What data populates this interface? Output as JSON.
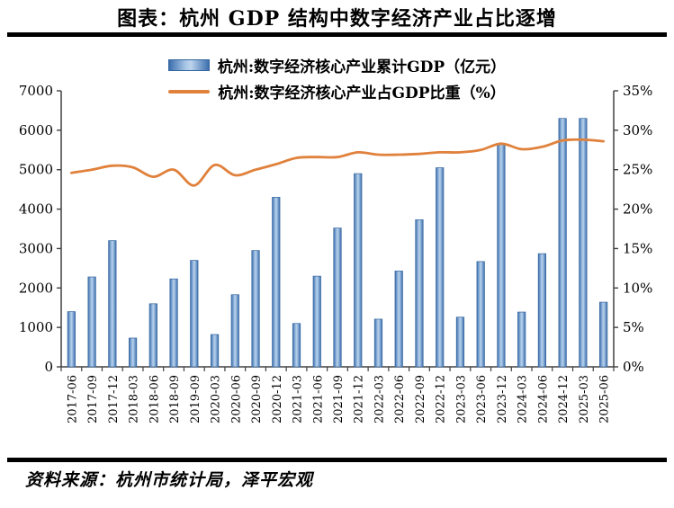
{
  "title": "图表：杭州 GDP 结构中数字经济产业占比逐增",
  "source": "资料来源：杭州市统计局，泽平宏观",
  "legend": [
    {
      "label": "杭州:数字经济核心产业累计GDP（亿元）",
      "swatch": "bar-swatch"
    },
    {
      "label": "杭州:数字经济核心产业占GDP比重（%）",
      "swatch": "line-swatch"
    }
  ],
  "colors": {
    "bar_edge": "#3c6fae",
    "bar_center": "#b0cce9",
    "bar_border": "#35669e",
    "line": "#e0813c",
    "axis": "#404040",
    "text": "#000000",
    "rule": "#000000"
  },
  "chart_data": {
    "type": "bar",
    "subtype": "bar-line combo, dual axis",
    "title": "图表：杭州 GDP 结构中数字经济产业占比逐增",
    "grid": false,
    "legend_position": "top-center",
    "categories": [
      "2017-06",
      "2017-09",
      "2017-12",
      "2018-03",
      "2018-06",
      "2018-09",
      "2019-09",
      "2020-03",
      "2020-06",
      "2020-09",
      "2020-12",
      "2021-03",
      "2021-06",
      "2021-09",
      "2021-12",
      "2022-03",
      "2022-06",
      "2022-09",
      "2022-12",
      "2023-03",
      "2023-06",
      "2023-12",
      "2024-03",
      "2024-06",
      "2024-12",
      "2025-03",
      "2025-06"
    ],
    "series": [
      {
        "name": "杭州:数字经济核心产业累计GDP（亿元）",
        "type": "bar",
        "axis": "left",
        "values": [
          1400,
          2280,
          3200,
          730,
          1600,
          2230,
          2700,
          820,
          1830,
          2950,
          4300,
          1100,
          2300,
          3520,
          4900,
          1210,
          2430,
          3730,
          5050,
          1260,
          2670,
          5650,
          1390,
          2870,
          6300,
          6300,
          1640
        ]
      },
      {
        "name": "杭州:数字经济核心产业占GDP比重（%）",
        "type": "line",
        "axis": "right",
        "values": [
          24.6,
          25.0,
          25.5,
          25.3,
          24.1,
          25.0,
          23.0,
          25.6,
          24.3,
          25.0,
          25.7,
          26.5,
          26.6,
          26.6,
          27.2,
          26.9,
          26.9,
          27.0,
          27.2,
          27.2,
          27.5,
          28.3,
          27.6,
          27.9,
          28.7,
          28.8,
          28.6
        ]
      }
    ],
    "left_axis": {
      "min": 0,
      "max": 7000,
      "step": 1000,
      "tick_labels": [
        "0",
        "1000",
        "2000",
        "3000",
        "4000",
        "5000",
        "6000",
        "7000"
      ]
    },
    "right_axis": {
      "min": 0,
      "max": 35,
      "step": 5,
      "tick_labels": [
        "0%",
        "5%",
        "10%",
        "15%",
        "20%",
        "25%",
        "30%",
        "35%"
      ]
    }
  }
}
